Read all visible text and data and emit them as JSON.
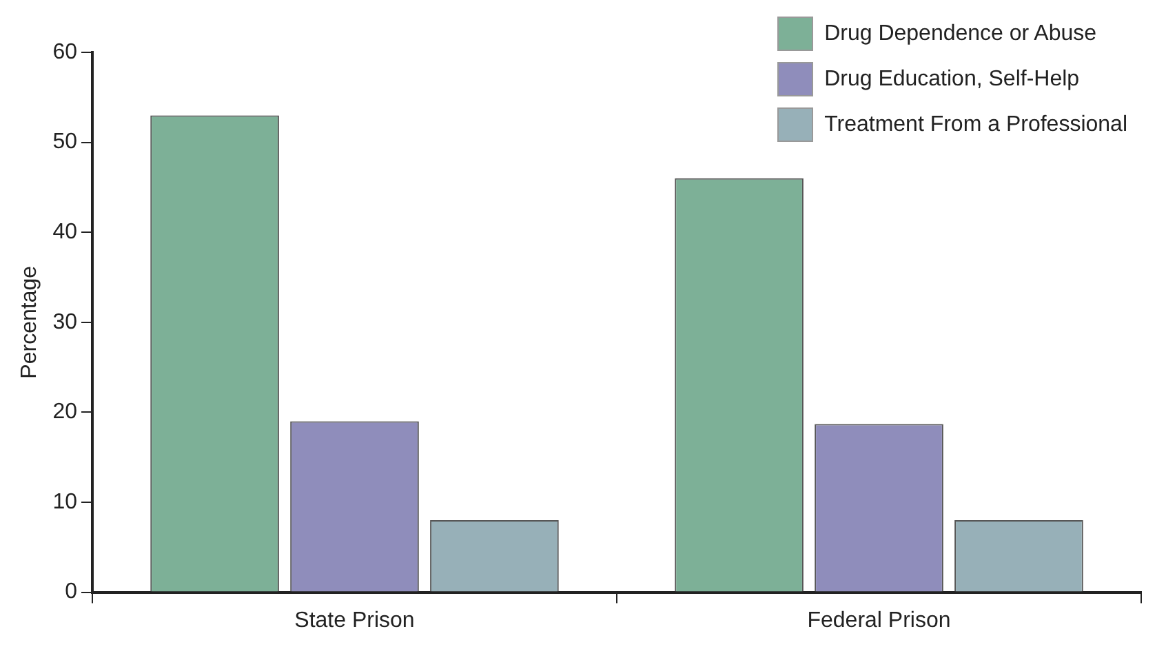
{
  "chart_data": {
    "type": "bar",
    "ylabel": "Percentage",
    "categories": [
      "State Prison",
      "Federal Prison"
    ],
    "series": [
      {
        "name": "Drug Dependence or Abuse",
        "color": "#7db097",
        "values": [
          53,
          46
        ]
      },
      {
        "name": "Drug Education, Self-Help",
        "color": "#8f8dbb",
        "values": [
          19,
          18.7
        ]
      },
      {
        "name": "Treatment From a Professional",
        "color": "#97b0b8",
        "values": [
          8,
          8
        ]
      }
    ],
    "ylim": [
      0,
      60
    ],
    "yticks": [
      0,
      10,
      20,
      30,
      40,
      50,
      60
    ],
    "grid": false,
    "legend": "top right"
  }
}
